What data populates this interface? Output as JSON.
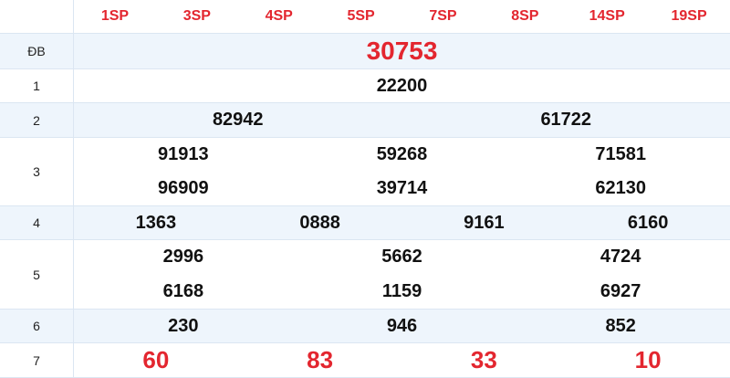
{
  "header": {
    "columns": [
      "1SP",
      "3SP",
      "4SP",
      "5SP",
      "7SP",
      "8SP",
      "14SP",
      "19SP"
    ]
  },
  "prizes": [
    {
      "label": "ĐB",
      "lines": [
        [
          "30753"
        ]
      ]
    },
    {
      "label": "1",
      "lines": [
        [
          "22200"
        ]
      ]
    },
    {
      "label": "2",
      "lines": [
        [
          "82942",
          "61722"
        ]
      ]
    },
    {
      "label": "3",
      "lines": [
        [
          "91913",
          "59268",
          "71581"
        ],
        [
          "96909",
          "39714",
          "62130"
        ]
      ]
    },
    {
      "label": "4",
      "lines": [
        [
          "1363",
          "0888",
          "9161",
          "6160"
        ]
      ]
    },
    {
      "label": "5",
      "lines": [
        [
          "2996",
          "5662",
          "4724"
        ],
        [
          "6168",
          "1159",
          "6927"
        ]
      ]
    },
    {
      "label": "6",
      "lines": [
        [
          "230",
          "946",
          "852"
        ]
      ]
    },
    {
      "label": "7",
      "lines": [
        [
          "60",
          "83",
          "33",
          "10"
        ]
      ]
    }
  ],
  "colors": {
    "accent": "#e3262f",
    "row_alt": "#eef5fc",
    "border": "#dbe6f2"
  }
}
